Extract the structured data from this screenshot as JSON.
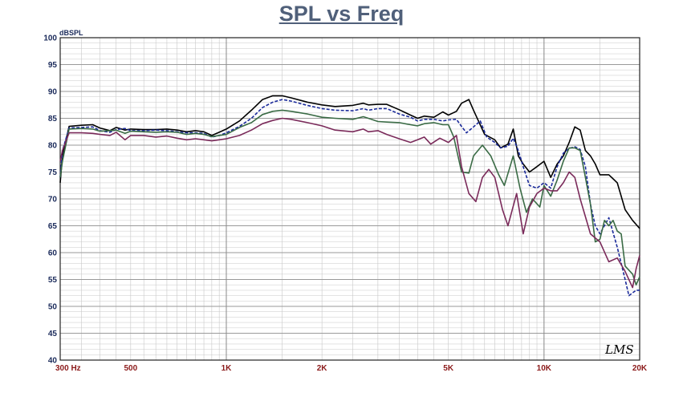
{
  "chart_data": {
    "type": "line",
    "title": "SPL vs Freq",
    "ylabel": "dBSPL",
    "xscale": "log",
    "xlim": [
      300,
      20000
    ],
    "ylim": [
      40,
      100
    ],
    "grid": true,
    "yticks": [
      40,
      45,
      50,
      55,
      60,
      65,
      70,
      75,
      80,
      85,
      90,
      95,
      100
    ],
    "xticks": [
      {
        "value": 300,
        "label": "300  Hz"
      },
      {
        "value": 500,
        "label": "500"
      },
      {
        "value": 1000,
        "label": "1K"
      },
      {
        "value": 2000,
        "label": "2K"
      },
      {
        "value": 5000,
        "label": "5K"
      },
      {
        "value": 10000,
        "label": "10K"
      },
      {
        "value": 20000,
        "label": "20K"
      }
    ],
    "series": [
      {
        "color": "#000000",
        "dash": "",
        "points": [
          [
            300,
            73
          ],
          [
            305,
            78
          ],
          [
            320,
            83.5
          ],
          [
            350,
            83.7
          ],
          [
            380,
            83.8
          ],
          [
            400,
            83.2
          ],
          [
            430,
            82.7
          ],
          [
            450,
            83.3
          ],
          [
            480,
            82.8
          ],
          [
            500,
            83
          ],
          [
            550,
            82.9
          ],
          [
            600,
            82.9
          ],
          [
            650,
            83
          ],
          [
            700,
            82.8
          ],
          [
            750,
            82.5
          ],
          [
            800,
            82.7
          ],
          [
            850,
            82.5
          ],
          [
            900,
            81.8
          ],
          [
            950,
            82.4
          ],
          [
            1000,
            83
          ],
          [
            1100,
            84.5
          ],
          [
            1200,
            86.5
          ],
          [
            1300,
            88.5
          ],
          [
            1400,
            89.2
          ],
          [
            1500,
            89.2
          ],
          [
            1600,
            88.8
          ],
          [
            1800,
            88
          ],
          [
            2000,
            87.5
          ],
          [
            2200,
            87.2
          ],
          [
            2500,
            87.4
          ],
          [
            2700,
            87.8
          ],
          [
            2800,
            87.5
          ],
          [
            3000,
            87.6
          ],
          [
            3200,
            87.6
          ],
          [
            3500,
            86.6
          ],
          [
            3800,
            85.6
          ],
          [
            4000,
            85
          ],
          [
            4200,
            85.4
          ],
          [
            4500,
            85.2
          ],
          [
            4800,
            86.2
          ],
          [
            5000,
            85.6
          ],
          [
            5300,
            86.3
          ],
          [
            5500,
            87.8
          ],
          [
            5800,
            88.5
          ],
          [
            6000,
            86.5
          ],
          [
            6500,
            82
          ],
          [
            7000,
            81
          ],
          [
            7300,
            79.5
          ],
          [
            7700,
            80.2
          ],
          [
            8000,
            83
          ],
          [
            8300,
            78
          ],
          [
            8600,
            76.5
          ],
          [
            9000,
            75
          ],
          [
            9500,
            76
          ],
          [
            10000,
            77
          ],
          [
            10500,
            74
          ],
          [
            11000,
            76.5
          ],
          [
            11500,
            78
          ],
          [
            12000,
            80.5
          ],
          [
            12500,
            83.4
          ],
          [
            13000,
            82.8
          ],
          [
            13500,
            79
          ],
          [
            14000,
            78
          ],
          [
            14500,
            76.5
          ],
          [
            15000,
            74.5
          ],
          [
            16000,
            74.5
          ],
          [
            17000,
            73
          ],
          [
            18000,
            68
          ],
          [
            19000,
            66
          ],
          [
            20000,
            64.5
          ]
        ]
      },
      {
        "color": "#1a2a9a",
        "dash": "4,2",
        "points": [
          [
            300,
            74
          ],
          [
            305,
            79
          ],
          [
            320,
            83.2
          ],
          [
            350,
            83.3
          ],
          [
            380,
            83.4
          ],
          [
            400,
            82.7
          ],
          [
            430,
            82.4
          ],
          [
            450,
            82.9
          ],
          [
            480,
            83.1
          ],
          [
            500,
            82.7
          ],
          [
            550,
            82.7
          ],
          [
            600,
            82.8
          ],
          [
            650,
            82.7
          ],
          [
            700,
            82.5
          ],
          [
            750,
            82.3
          ],
          [
            800,
            82.3
          ],
          [
            850,
            82.2
          ],
          [
            900,
            81.5
          ],
          [
            950,
            81.8
          ],
          [
            1000,
            82.3
          ],
          [
            1100,
            83.5
          ],
          [
            1200,
            85
          ],
          [
            1300,
            87
          ],
          [
            1400,
            88
          ],
          [
            1500,
            88.5
          ],
          [
            1600,
            88.2
          ],
          [
            1800,
            87.4
          ],
          [
            2000,
            86.8
          ],
          [
            2200,
            86.5
          ],
          [
            2500,
            86.4
          ],
          [
            2700,
            86.8
          ],
          [
            2800,
            86.5
          ],
          [
            3000,
            86.8
          ],
          [
            3200,
            86.8
          ],
          [
            3500,
            85.8
          ],
          [
            3800,
            85.2
          ],
          [
            4000,
            84.5
          ],
          [
            4200,
            84.8
          ],
          [
            4500,
            84.8
          ],
          [
            4800,
            84.5
          ],
          [
            5000,
            84.7
          ],
          [
            5300,
            84.8
          ],
          [
            5500,
            83.5
          ],
          [
            5700,
            82.3
          ],
          [
            6000,
            83.4
          ],
          [
            6300,
            84.5
          ],
          [
            6600,
            81.5
          ],
          [
            7000,
            80.5
          ],
          [
            7300,
            79.5
          ],
          [
            7700,
            79.8
          ],
          [
            8000,
            81.3
          ],
          [
            8300,
            79
          ],
          [
            8600,
            76
          ],
          [
            9000,
            72.5
          ],
          [
            9500,
            72
          ],
          [
            10000,
            73
          ],
          [
            10500,
            72
          ],
          [
            11000,
            76
          ],
          [
            11500,
            78.5
          ],
          [
            12000,
            79.4
          ],
          [
            12500,
            79.7
          ],
          [
            13000,
            79.2
          ],
          [
            13500,
            76
          ],
          [
            14000,
            69
          ],
          [
            14500,
            65
          ],
          [
            15000,
            63.5
          ],
          [
            16000,
            66.5
          ],
          [
            17000,
            61
          ],
          [
            18000,
            55
          ],
          [
            18500,
            52
          ],
          [
            19500,
            53
          ],
          [
            20000,
            53
          ]
        ]
      },
      {
        "color": "#3a6b45",
        "dash": "",
        "points": [
          [
            300,
            74
          ],
          [
            305,
            77
          ],
          [
            320,
            83
          ],
          [
            350,
            83.1
          ],
          [
            380,
            83
          ],
          [
            400,
            82.6
          ],
          [
            430,
            82.7
          ],
          [
            450,
            82.8
          ],
          [
            480,
            82.2
          ],
          [
            500,
            82.6
          ],
          [
            550,
            82.5
          ],
          [
            600,
            82.4
          ],
          [
            650,
            82.5
          ],
          [
            700,
            82.4
          ],
          [
            750,
            82
          ],
          [
            800,
            82.2
          ],
          [
            850,
            82
          ],
          [
            900,
            81.6
          ],
          [
            950,
            81.8
          ],
          [
            1000,
            82
          ],
          [
            1100,
            83.3
          ],
          [
            1200,
            84.2
          ],
          [
            1300,
            85.7
          ],
          [
            1400,
            86.3
          ],
          [
            1500,
            86.5
          ],
          [
            1600,
            86.3
          ],
          [
            1800,
            85.8
          ],
          [
            2000,
            85.2
          ],
          [
            2200,
            85
          ],
          [
            2500,
            84.8
          ],
          [
            2700,
            85.3
          ],
          [
            2800,
            85
          ],
          [
            3000,
            84.4
          ],
          [
            3200,
            84.3
          ],
          [
            3500,
            84.2
          ],
          [
            3800,
            83.8
          ],
          [
            4000,
            83.6
          ],
          [
            4200,
            84
          ],
          [
            4500,
            84.2
          ],
          [
            4800,
            83.8
          ],
          [
            5000,
            83.8
          ],
          [
            5200,
            81.5
          ],
          [
            5500,
            75
          ],
          [
            5800,
            74.8
          ],
          [
            6000,
            78
          ],
          [
            6400,
            80
          ],
          [
            6800,
            78
          ],
          [
            7200,
            74.5
          ],
          [
            7500,
            72.5
          ],
          [
            8000,
            78
          ],
          [
            8400,
            72
          ],
          [
            8800,
            67.5
          ],
          [
            9200,
            70
          ],
          [
            9700,
            68.5
          ],
          [
            10000,
            72.5
          ],
          [
            10500,
            70.5
          ],
          [
            11000,
            73.5
          ],
          [
            11500,
            77
          ],
          [
            12000,
            79.5
          ],
          [
            12500,
            79.5
          ],
          [
            13000,
            79
          ],
          [
            13500,
            74
          ],
          [
            14000,
            69
          ],
          [
            14500,
            62
          ],
          [
            15000,
            62.5
          ],
          [
            15500,
            66
          ],
          [
            16000,
            65
          ],
          [
            16500,
            66
          ],
          [
            17000,
            64
          ],
          [
            17500,
            63.5
          ],
          [
            18000,
            57.5
          ],
          [
            19000,
            56
          ],
          [
            19500,
            54
          ],
          [
            20000,
            55.5
          ]
        ]
      },
      {
        "color": "#7a2a5a",
        "dash": "",
        "points": [
          [
            300,
            77
          ],
          [
            305,
            79
          ],
          [
            320,
            82.3
          ],
          [
            350,
            82.3
          ],
          [
            380,
            82.2
          ],
          [
            400,
            82
          ],
          [
            430,
            81.8
          ],
          [
            450,
            82.4
          ],
          [
            480,
            81
          ],
          [
            500,
            81.8
          ],
          [
            550,
            81.8
          ],
          [
            600,
            81.5
          ],
          [
            650,
            81.7
          ],
          [
            700,
            81.3
          ],
          [
            750,
            81
          ],
          [
            800,
            81.2
          ],
          [
            850,
            81
          ],
          [
            900,
            80.8
          ],
          [
            950,
            81
          ],
          [
            1000,
            81.2
          ],
          [
            1100,
            81.8
          ],
          [
            1200,
            82.8
          ],
          [
            1300,
            84
          ],
          [
            1400,
            84.6
          ],
          [
            1500,
            85
          ],
          [
            1600,
            84.8
          ],
          [
            1800,
            84.2
          ],
          [
            2000,
            83.6
          ],
          [
            2200,
            82.8
          ],
          [
            2500,
            82.5
          ],
          [
            2700,
            83
          ],
          [
            2800,
            82.5
          ],
          [
            3000,
            82.7
          ],
          [
            3200,
            82
          ],
          [
            3500,
            81.2
          ],
          [
            3800,
            80.5
          ],
          [
            4000,
            81
          ],
          [
            4200,
            81.5
          ],
          [
            4400,
            80.2
          ],
          [
            4700,
            81.3
          ],
          [
            5000,
            80.5
          ],
          [
            5300,
            81.8
          ],
          [
            5500,
            76
          ],
          [
            5800,
            71
          ],
          [
            6100,
            69.5
          ],
          [
            6400,
            74
          ],
          [
            6700,
            75.5
          ],
          [
            7000,
            74
          ],
          [
            7400,
            68
          ],
          [
            7700,
            65
          ],
          [
            8200,
            71
          ],
          [
            8600,
            63.5
          ],
          [
            9000,
            68.5
          ],
          [
            9500,
            71
          ],
          [
            10000,
            72
          ],
          [
            10500,
            71.5
          ],
          [
            11000,
            71.5
          ],
          [
            11500,
            73
          ],
          [
            12000,
            75
          ],
          [
            12500,
            74
          ],
          [
            13000,
            70
          ],
          [
            14000,
            63.5
          ],
          [
            15000,
            62
          ],
          [
            16000,
            58.3
          ],
          [
            17000,
            59
          ],
          [
            18000,
            56.5
          ],
          [
            19000,
            53.5
          ],
          [
            19500,
            57
          ],
          [
            20000,
            59.5
          ]
        ]
      }
    ]
  },
  "logo_text": "LMS"
}
